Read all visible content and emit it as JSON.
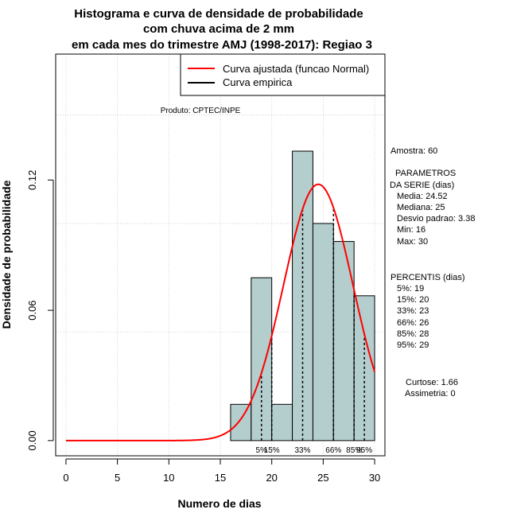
{
  "chart_data": {
    "type": "histogram",
    "title_lines": [
      "Histograma e curva de densidade de probabilidade",
      "com chuva acima de 2 mm",
      "em cada mes do trimestre AMJ (1998-2017): Regiao 3"
    ],
    "xlabel": "Numero de dias",
    "ylabel": "Densidade de probabilidade",
    "xlim": [
      -1,
      31
    ],
    "ylim": [
      -0.007,
      0.178
    ],
    "x_ticks": [
      0,
      5,
      10,
      15,
      20,
      25,
      30
    ],
    "y_ticks": [
      0.0,
      0.06,
      0.12
    ],
    "y_tick_labels": [
      "0.00",
      "0.06",
      "0.12"
    ],
    "grid": true,
    "grid_y_lines": [
      0.05,
      0.1,
      0.15
    ],
    "bins": [
      {
        "start": 16,
        "end": 18,
        "density": 0.0167
      },
      {
        "start": 18,
        "end": 20,
        "density": 0.075
      },
      {
        "start": 20,
        "end": 22,
        "density": 0.0167
      },
      {
        "start": 22,
        "end": 24,
        "density": 0.1333
      },
      {
        "start": 24,
        "end": 26,
        "density": 0.1
      },
      {
        "start": 26,
        "end": 28,
        "density": 0.0917
      },
      {
        "start": 28,
        "end": 30,
        "density": 0.0667
      }
    ],
    "bar_color": "#b4cdcd",
    "curve": {
      "name": "Curva ajustada (funcao Normal)",
      "mean": 24.52,
      "sd": 3.38,
      "x_from": 0,
      "x_to": 30,
      "color": "#ff0000"
    },
    "empirical_name": "Curva empirica",
    "empirical_color": "#000000",
    "legend_position": "top-right",
    "percentile_lines": [
      {
        "x": 19,
        "label": "5%"
      },
      {
        "x": 20,
        "label": "15%"
      },
      {
        "x": 23,
        "label": "33%"
      },
      {
        "x": 26,
        "label": "66%"
      },
      {
        "x": 28,
        "label": "85%"
      },
      {
        "x": 29,
        "label": "95%"
      }
    ],
    "product_label": "Produto: CPTEC/INPE"
  },
  "side_panel": {
    "amostra": "Amostra: 60",
    "param_title_1": "PARAMETROS",
    "param_title_2": "DA SERIE (dias)",
    "media": "Media: 24.52",
    "mediana": "Mediana: 25",
    "desvio": "Desvio padrao: 3.38",
    "min": "Min: 16",
    "max": "Max: 30",
    "percentis_title": "PERCENTIS (dias)",
    "p5": "5%: 19",
    "p15": "15%: 20",
    "p33": "33%: 23",
    "p66": "66%: 26",
    "p85": "85%: 28",
    "p95": "95%: 29",
    "curtose": "Curtose: 1.66",
    "assimetria": "Assimetria: 0"
  }
}
